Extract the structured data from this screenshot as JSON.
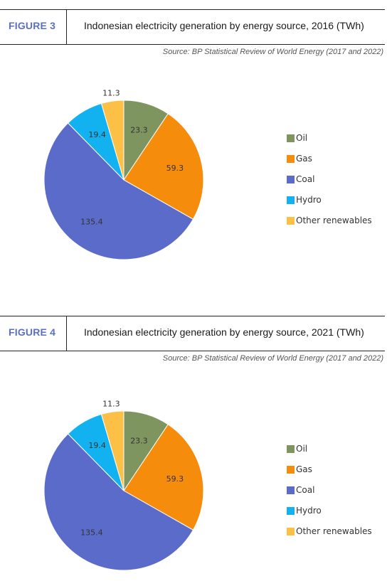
{
  "figures": [
    {
      "label": "FIGURE 3",
      "title": "Indonesian electricity generation by energy source, 2016 (TWh)",
      "source": "Source: BP Statistical Review of World Energy (2017 and 2022)"
    },
    {
      "label": "FIGURE 4",
      "title": "Indonesian electricity generation by energy source, 2021 (TWh)",
      "source": "Source: BP Statistical Review of World Energy (2017 and 2022)"
    }
  ],
  "chart_data": [
    {
      "type": "pie",
      "categories": [
        "Oil",
        "Gas",
        "Coal",
        "Hydro",
        "Other renewables"
      ],
      "values": [
        23.3,
        59.3,
        135.4,
        19.4,
        11.3
      ],
      "colors": [
        "#7f9560",
        "#f58c0c",
        "#5b6bc9",
        "#12b1ef",
        "#fbc045"
      ],
      "legend_position": "right"
    },
    {
      "type": "pie",
      "categories": [
        "Oil",
        "Gas",
        "Coal",
        "Hydro",
        "Other renewables"
      ],
      "values": [
        23.3,
        59.3,
        135.4,
        19.4,
        11.3
      ],
      "colors": [
        "#7f9560",
        "#f58c0c",
        "#5b6bc9",
        "#12b1ef",
        "#fbc045"
      ],
      "legend_position": "right"
    }
  ]
}
